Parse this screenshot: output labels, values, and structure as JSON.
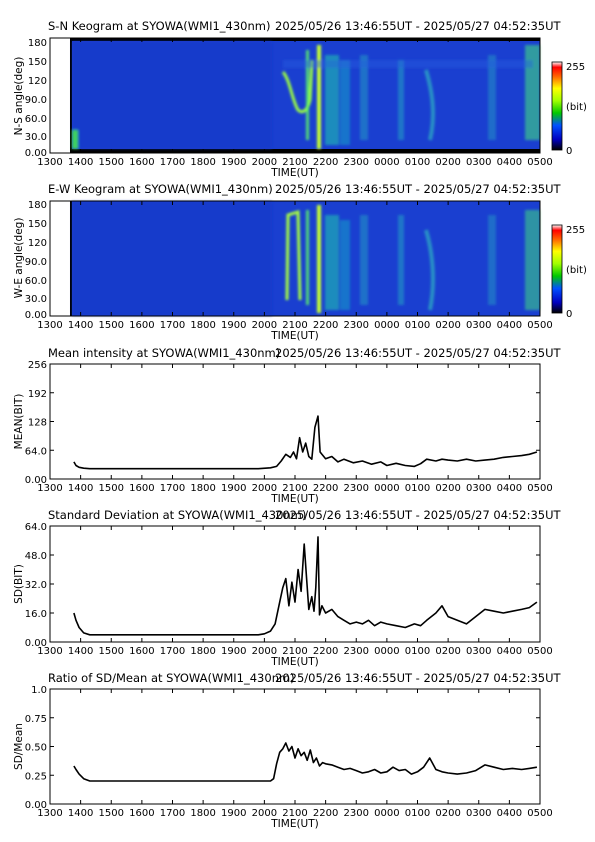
{
  "header_range": "2025/05/26 13:46:55UT - 2025/05/27 04:52:35UT",
  "x_axis": {
    "label": "TIME(UT)",
    "ticks": [
      "1300",
      "1400",
      "1500",
      "1600",
      "1700",
      "1800",
      "1900",
      "2000",
      "2100",
      "2200",
      "2300",
      "0000",
      "0100",
      "0200",
      "0300",
      "0400",
      "0500"
    ]
  },
  "keograms": [
    {
      "title": "S-N Keogram at SYOWA(WMI1_430nm)",
      "ylabel": "N-S angle(deg)",
      "yticks": [
        "0.00",
        "30.0",
        "60.0",
        "90.0",
        "120",
        "150",
        "180"
      ],
      "data_start": "13:46:55",
      "colorbar": {
        "max_label": "255",
        "unit_label": "(bit)",
        "min_label": "0"
      }
    },
    {
      "title": "E-W Keogram at SYOWA(WMI1_430nm)",
      "ylabel": "W-E angle(deg)",
      "yticks": [
        "0.00",
        "30.0",
        "60.0",
        "90.0",
        "120",
        "150",
        "180"
      ],
      "data_start": "13:46:55",
      "colorbar": {
        "max_label": "255",
        "unit_label": "(bit)",
        "min_label": "0"
      }
    }
  ],
  "chart_data": [
    {
      "type": "line",
      "title": "Mean intensity at SYOWA(WMI1_430nm)",
      "xlabel": "TIME(UT)",
      "ylabel": "MEAN(BIT)",
      "xlim": [
        13.0,
        29.0
      ],
      "ylim": [
        0,
        256
      ],
      "yticks": [
        "0.00",
        "64.0",
        "128",
        "192",
        "256"
      ],
      "grid": false,
      "series": [
        {
          "x": [
            13.78,
            13.85,
            13.95,
            14.1,
            14.3,
            15.0,
            16.0,
            17.0,
            18.0,
            19.0,
            19.8,
            20.2,
            20.4,
            20.55,
            20.7,
            20.85,
            20.95,
            21.05,
            21.15,
            21.25,
            21.35,
            21.45,
            21.55,
            21.65,
            21.75,
            21.82,
            21.88,
            22.0,
            22.2,
            22.4,
            22.6,
            22.9,
            23.2,
            23.5,
            23.8,
            24.0,
            24.3,
            24.6,
            24.9,
            25.1,
            25.3,
            25.6,
            25.8,
            26.0,
            26.3,
            26.6,
            26.9,
            27.2,
            27.5,
            27.8,
            28.1,
            28.4,
            28.65,
            28.9
          ],
          "y": [
            38,
            30,
            26,
            24,
            23,
            23,
            23,
            23,
            23,
            23,
            23,
            25,
            28,
            40,
            55,
            48,
            60,
            45,
            92,
            60,
            80,
            50,
            44,
            115,
            140,
            60,
            55,
            45,
            50,
            38,
            44,
            36,
            40,
            33,
            38,
            30,
            35,
            30,
            28,
            34,
            44,
            40,
            44,
            42,
            40,
            44,
            40,
            42,
            44,
            48,
            50,
            52,
            55,
            60
          ]
        }
      ]
    },
    {
      "type": "line",
      "title": "Standard Deviation at SYOWA(WMI1_430nm)",
      "xlabel": "TIME(UT)",
      "ylabel": "SD(BIT)",
      "xlim": [
        13.0,
        29.0
      ],
      "ylim": [
        0,
        64
      ],
      "yticks": [
        "0.00",
        "16.0",
        "32.0",
        "48.0",
        "64.0"
      ],
      "grid": false,
      "series": [
        {
          "x": [
            13.78,
            13.85,
            13.95,
            14.1,
            14.3,
            15.0,
            16.0,
            17.0,
            18.0,
            19.0,
            19.8,
            20.0,
            20.2,
            20.35,
            20.5,
            20.6,
            20.7,
            20.8,
            20.9,
            21.0,
            21.1,
            21.2,
            21.3,
            21.38,
            21.45,
            21.55,
            21.62,
            21.68,
            21.75,
            21.8,
            21.88,
            22.0,
            22.2,
            22.4,
            22.6,
            22.8,
            23.0,
            23.2,
            23.4,
            23.6,
            23.8,
            24.0,
            24.3,
            24.6,
            24.9,
            25.1,
            25.3,
            25.6,
            25.8,
            26.0,
            26.3,
            26.6,
            26.9,
            27.2,
            27.5,
            27.8,
            28.1,
            28.4,
            28.65,
            28.9
          ],
          "y": [
            16,
            12,
            8,
            5,
            4,
            4,
            4,
            4,
            4,
            4,
            4,
            4.5,
            6,
            10,
            22,
            30,
            35,
            20,
            33,
            22,
            40,
            28,
            54,
            35,
            18,
            25,
            17,
            30,
            58,
            15,
            20,
            16,
            18,
            14,
            12,
            10,
            11,
            10,
            12,
            9,
            11,
            10,
            9,
            8,
            10,
            9,
            12,
            16,
            20,
            14,
            12,
            10,
            14,
            18,
            17,
            16,
            17,
            18,
            19,
            22
          ]
        }
      ]
    },
    {
      "type": "line",
      "title": "Ratio of SD/Mean at SYOWA(WMI1_430nm)",
      "xlabel": "TIME(UT)",
      "ylabel": "SD/Mean",
      "xlim": [
        13.0,
        29.0
      ],
      "ylim": [
        0,
        1.0
      ],
      "yticks": [
        "0.00",
        "0.25",
        "0.50",
        "0.75",
        "1.0"
      ],
      "grid": false,
      "series": [
        {
          "x": [
            13.78,
            13.85,
            13.95,
            14.1,
            14.3,
            15.0,
            16.0,
            17.0,
            18.0,
            19.0,
            19.8,
            20.2,
            20.3,
            20.4,
            20.5,
            20.6,
            20.7,
            20.8,
            20.9,
            21.0,
            21.1,
            21.2,
            21.3,
            21.4,
            21.5,
            21.6,
            21.7,
            21.8,
            21.9,
            22.0,
            22.2,
            22.4,
            22.6,
            22.8,
            23.0,
            23.2,
            23.4,
            23.6,
            23.8,
            24.0,
            24.2,
            24.4,
            24.6,
            24.8,
            25.0,
            25.2,
            25.4,
            25.6,
            25.8,
            26.0,
            26.3,
            26.6,
            26.9,
            27.2,
            27.5,
            27.8,
            28.1,
            28.4,
            28.65,
            28.9
          ],
          "y": [
            0.33,
            0.3,
            0.26,
            0.22,
            0.2,
            0.2,
            0.2,
            0.2,
            0.2,
            0.2,
            0.2,
            0.2,
            0.22,
            0.35,
            0.45,
            0.48,
            0.53,
            0.46,
            0.5,
            0.4,
            0.48,
            0.42,
            0.45,
            0.38,
            0.47,
            0.36,
            0.4,
            0.33,
            0.36,
            0.35,
            0.34,
            0.32,
            0.3,
            0.31,
            0.29,
            0.27,
            0.28,
            0.3,
            0.27,
            0.28,
            0.32,
            0.29,
            0.3,
            0.26,
            0.28,
            0.32,
            0.4,
            0.3,
            0.28,
            0.27,
            0.26,
            0.27,
            0.29,
            0.34,
            0.32,
            0.3,
            0.31,
            0.3,
            0.31,
            0.32
          ]
        }
      ]
    }
  ]
}
